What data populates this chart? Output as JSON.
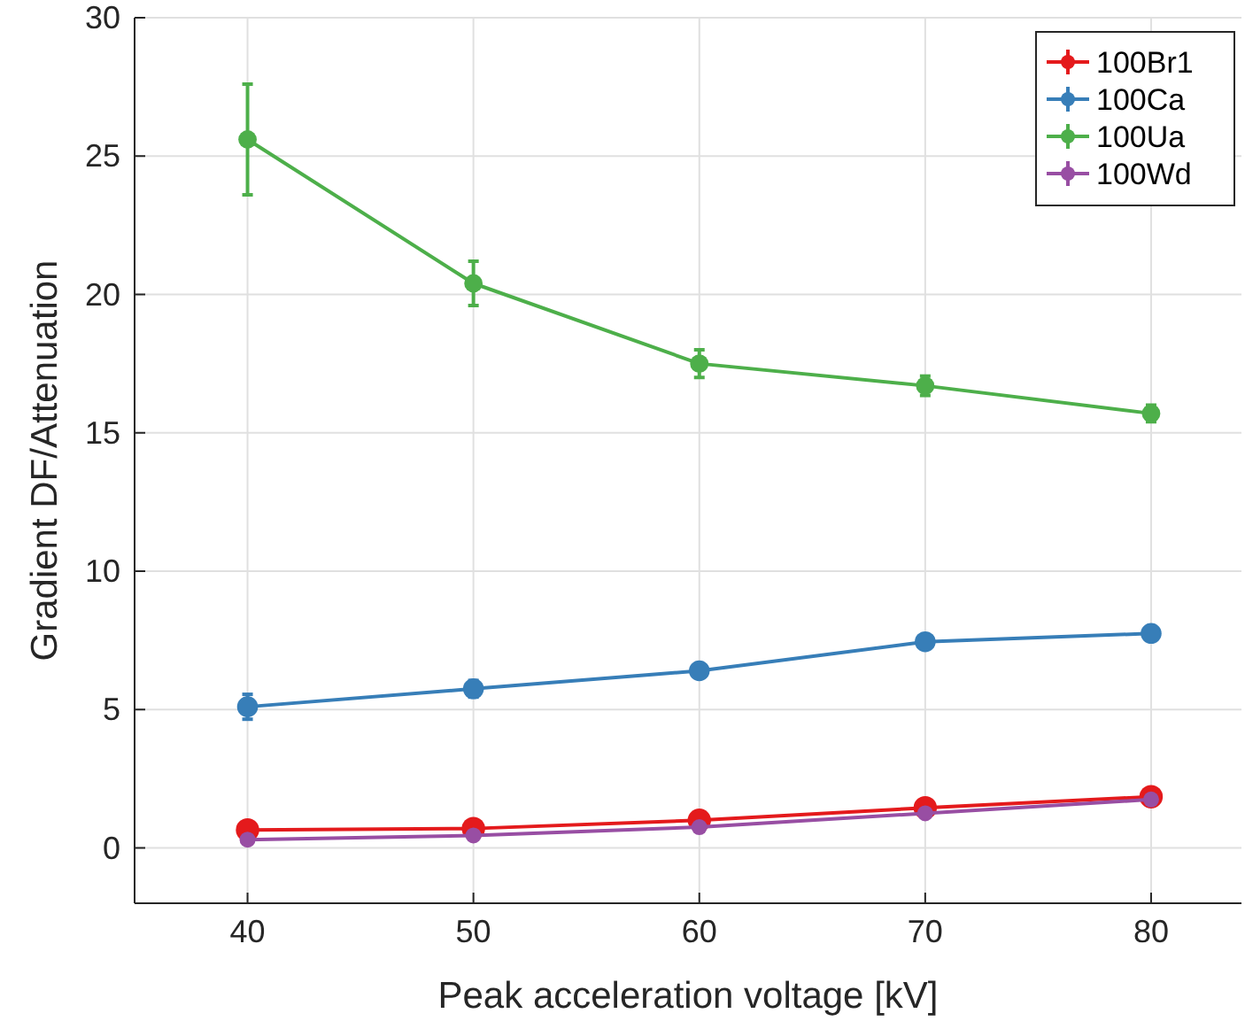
{
  "chart_data": {
    "type": "line",
    "xlabel": "Peak acceleration voltage [kV]",
    "ylabel": "Gradient DF/Attenuation",
    "x": [
      40,
      50,
      60,
      70,
      80
    ],
    "xlim": [
      35,
      84
    ],
    "xticks": [
      40,
      50,
      60,
      70,
      80
    ],
    "ylim": [
      -2,
      30
    ],
    "yticks": [
      0,
      5,
      10,
      15,
      20,
      25,
      30
    ],
    "grid": true,
    "legend": "top right",
    "marker": "circle",
    "series": [
      {
        "name": "100Br1",
        "color": "#e41a1c",
        "values": [
          0.65,
          0.7,
          1.0,
          1.45,
          1.85
        ]
      },
      {
        "name": "100Ca",
        "color": "#377eb8",
        "values": [
          5.1,
          5.75,
          6.4,
          7.45,
          7.75
        ],
        "errors": [
          0.45,
          0.3,
          0.2,
          0.2,
          0.15
        ]
      },
      {
        "name": "100Ua",
        "color": "#4daf4a",
        "values": [
          25.6,
          20.4,
          17.5,
          16.7,
          15.7
        ],
        "errors": [
          2,
          0.8,
          0.5,
          0.35,
          0.3
        ]
      },
      {
        "name": "100Wd",
        "color": "#984ea3",
        "values": [
          0.3,
          0.45,
          0.75,
          1.25,
          1.75
        ]
      }
    ]
  }
}
